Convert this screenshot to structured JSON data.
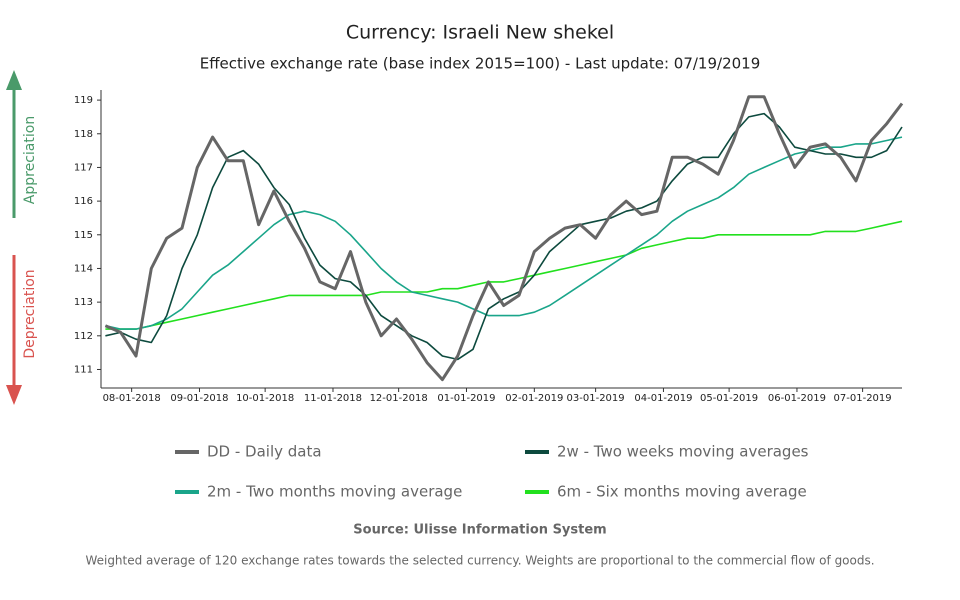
{
  "chart_data": {
    "type": "line",
    "title": "Currency: Israeli New shekel",
    "subtitle": "Effective exchange rate (base index 2015=100) - Last update: 07/19/2019",
    "annotations": [
      "Appreciation",
      "Depreciation"
    ],
    "source": "Source: Ulisse Information System",
    "note": "Weighted average of 120 exchange rates towards the selected currency. Weights are proportional to the commercial flow of goods.",
    "x": [
      "07-20-2018",
      "07-27-2018",
      "08-03-2018",
      "08-10-2018",
      "08-17-2018",
      "08-24-2018",
      "08-31-2018",
      "09-07-2018",
      "09-14-2018",
      "09-21-2018",
      "09-28-2018",
      "10-05-2018",
      "10-12-2018",
      "10-19-2018",
      "10-26-2018",
      "11-02-2018",
      "11-09-2018",
      "11-16-2018",
      "11-23-2018",
      "11-30-2018",
      "12-07-2018",
      "12-14-2018",
      "12-21-2018",
      "12-28-2018",
      "01-04-2019",
      "01-11-2019",
      "01-18-2019",
      "01-25-2019",
      "02-01-2019",
      "02-08-2019",
      "02-15-2019",
      "02-22-2019",
      "03-01-2019",
      "03-08-2019",
      "03-15-2019",
      "03-22-2019",
      "03-29-2019",
      "04-05-2019",
      "04-12-2019",
      "04-19-2019",
      "04-26-2019",
      "05-03-2019",
      "05-10-2019",
      "05-17-2019",
      "05-24-2019",
      "05-31-2019",
      "06-07-2019",
      "06-14-2019",
      "06-21-2019",
      "06-28-2019",
      "07-05-2019",
      "07-12-2019",
      "07-19-2019"
    ],
    "series": [
      {
        "name": "DD - Daily data",
        "color": "#666666",
        "values": [
          112.3,
          112.1,
          111.4,
          114.0,
          114.9,
          115.2,
          117.0,
          117.9,
          117.2,
          117.2,
          115.3,
          116.3,
          115.4,
          114.6,
          113.6,
          113.4,
          114.5,
          113.0,
          112.0,
          112.5,
          111.9,
          111.2,
          110.7,
          111.4,
          112.6,
          113.6,
          112.9,
          113.2,
          114.5,
          114.9,
          115.2,
          115.3,
          114.9,
          115.6,
          116.0,
          115.6,
          115.7,
          117.3,
          117.3,
          117.1,
          116.8,
          117.8,
          119.1,
          119.1,
          118.0,
          117.0,
          117.6,
          117.7,
          117.3,
          116.6,
          117.8,
          118.3,
          118.9
        ]
      },
      {
        "name": "2w - Two weeks moving averages",
        "color": "#0d4a3e",
        "values": [
          112.0,
          112.1,
          111.9,
          111.8,
          112.6,
          114.0,
          115.0,
          116.4,
          117.3,
          117.5,
          117.1,
          116.4,
          115.9,
          114.9,
          114.1,
          113.7,
          113.6,
          113.2,
          112.6,
          112.3,
          112.0,
          111.8,
          111.4,
          111.3,
          111.6,
          112.8,
          113.1,
          113.3,
          113.8,
          114.5,
          114.9,
          115.3,
          115.4,
          115.5,
          115.7,
          115.8,
          116.0,
          116.6,
          117.1,
          117.3,
          117.3,
          118.0,
          118.5,
          118.6,
          118.2,
          117.6,
          117.5,
          117.4,
          117.4,
          117.3,
          117.3,
          117.5,
          118.2
        ]
      },
      {
        "name": "2m - Two months moving average",
        "color": "#1aa58a",
        "values": [
          112.3,
          112.2,
          112.2,
          112.3,
          112.5,
          112.8,
          113.3,
          113.8,
          114.1,
          114.5,
          114.9,
          115.3,
          115.6,
          115.7,
          115.6,
          115.4,
          115.0,
          114.5,
          114.0,
          113.6,
          113.3,
          113.2,
          113.1,
          113.0,
          112.8,
          112.6,
          112.6,
          112.6,
          112.7,
          112.9,
          113.2,
          113.5,
          113.8,
          114.1,
          114.4,
          114.7,
          115.0,
          115.4,
          115.7,
          115.9,
          116.1,
          116.4,
          116.8,
          117.0,
          117.2,
          117.4,
          117.5,
          117.6,
          117.6,
          117.7,
          117.7,
          117.8,
          117.9
        ]
      },
      {
        "name": "6m - Six months moving average",
        "color": "#22e01e",
        "values": [
          112.2,
          112.2,
          112.2,
          112.3,
          112.4,
          112.5,
          112.6,
          112.7,
          112.8,
          112.9,
          113.0,
          113.1,
          113.2,
          113.2,
          113.2,
          113.2,
          113.2,
          113.2,
          113.3,
          113.3,
          113.3,
          113.3,
          113.4,
          113.4,
          113.5,
          113.6,
          113.6,
          113.7,
          113.8,
          113.9,
          114.0,
          114.1,
          114.2,
          114.3,
          114.4,
          114.6,
          114.7,
          114.8,
          114.9,
          114.9,
          115.0,
          115.0,
          115.0,
          115.0,
          115.0,
          115.0,
          115.0,
          115.1,
          115.1,
          115.1,
          115.2,
          115.3,
          115.4
        ]
      }
    ],
    "xlim": [
      "07-18-2018",
      "07-19-2019"
    ],
    "xticks": [
      "08-01-2018",
      "09-01-2018",
      "10-01-2018",
      "11-01-2018",
      "12-01-2018",
      "01-01-2019",
      "02-01-2019",
      "03-01-2019",
      "04-01-2019",
      "05-01-2019",
      "06-01-2019",
      "07-01-2019"
    ],
    "ylim": [
      110.45,
      119.3
    ],
    "yticks": [
      111,
      112,
      113,
      114,
      115,
      116,
      117,
      118,
      119
    ],
    "grid": false
  }
}
